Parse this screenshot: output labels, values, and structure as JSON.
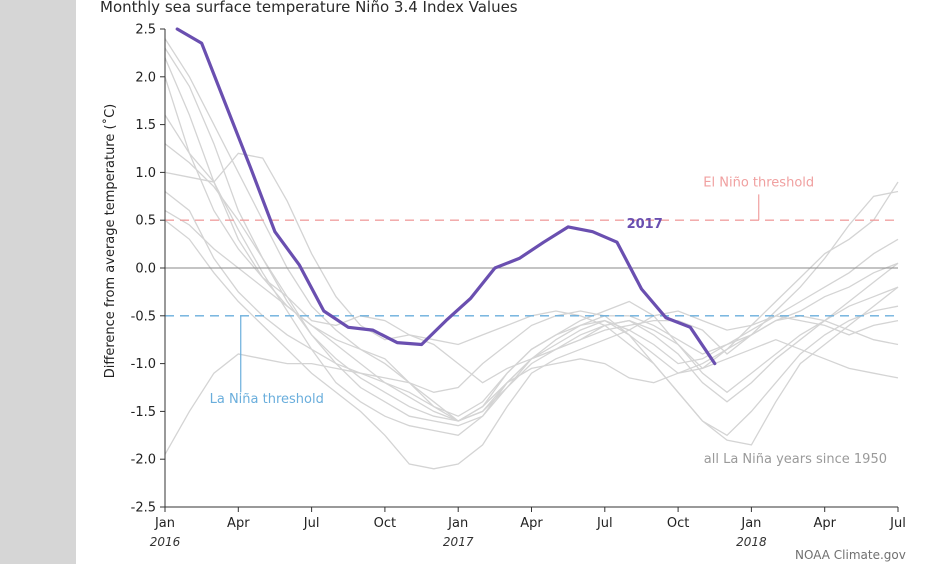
{
  "page": {
    "title": "Monthly sea surface temperature Niño 3.4 Index Values",
    "credit": "NOAA Climate.gov"
  },
  "colors": {
    "highlight": "#6a4fb0",
    "background_lines": "#d4d4d4",
    "el_nino": "#f0a0a0",
    "la_nina": "#6aaedc",
    "zero_line": "#8a8a8a"
  },
  "chart_data": {
    "type": "line",
    "title": "Monthly sea surface temperature Niño 3.4 Index Values",
    "ylabel": "Difference from average temperature (˚C)",
    "xlabel": "",
    "ylim": [
      -2.5,
      2.5
    ],
    "xlim": [
      0,
      30
    ],
    "x_ticks": [
      {
        "x": 0,
        "label": "Jan",
        "year": "2016"
      },
      {
        "x": 3,
        "label": "Apr",
        "year": ""
      },
      {
        "x": 6,
        "label": "Jul",
        "year": ""
      },
      {
        "x": 9,
        "label": "Oct",
        "year": ""
      },
      {
        "x": 12,
        "label": "Jan",
        "year": "2017"
      },
      {
        "x": 15,
        "label": "Apr",
        "year": ""
      },
      {
        "x": 18,
        "label": "Jul",
        "year": ""
      },
      {
        "x": 21,
        "label": "Oct",
        "year": ""
      },
      {
        "x": 24,
        "label": "Jan",
        "year": "2018"
      },
      {
        "x": 27,
        "label": "Apr",
        "year": ""
      },
      {
        "x": 30,
        "label": "Jul",
        "year": ""
      }
    ],
    "y_ticks": [
      {
        "v": 2.5,
        "label": "2.5"
      },
      {
        "v": 2.0,
        "label": "2.0"
      },
      {
        "v": 1.5,
        "label": "1.5"
      },
      {
        "v": 1.0,
        "label": "1.0"
      },
      {
        "v": 0.5,
        "label": "0.5"
      },
      {
        "v": 0.0,
        "label": "0.0"
      },
      {
        "v": -0.5,
        "label": "-0.5"
      },
      {
        "v": -1.0,
        "label": "-1.0"
      },
      {
        "v": -1.5,
        "label": "-1.5"
      },
      {
        "v": -2.0,
        "label": "-2.0"
      },
      {
        "v": -2.5,
        "label": "-2.5"
      }
    ],
    "thresholds": [
      {
        "name": "El Niño threshold",
        "value": 0.5
      },
      {
        "name": "La Niña threshold",
        "value": -0.5
      }
    ],
    "highlight_series": {
      "name": "2017",
      "x_start": 0.5,
      "values": [
        2.5,
        2.35,
        1.7,
        1.05,
        0.38,
        0.03,
        -0.45,
        -0.62,
        -0.65,
        -0.78,
        -0.8,
        -0.55,
        -0.32,
        0.0,
        0.1,
        0.27,
        0.43,
        0.38,
        0.27,
        -0.22,
        -0.52,
        -0.62,
        -1.0
      ]
    },
    "background_label": "all La Niña years since 1950",
    "background_series": [
      {
        "values": [
          2.4,
          2.0,
          1.5,
          1.0,
          0.5,
          0.0,
          -0.4,
          -0.65,
          -0.85,
          -1.0,
          -1.2,
          -1.4,
          -1.6,
          -1.5,
          -1.2,
          -0.95,
          -0.8,
          -0.65,
          -0.55,
          -0.7,
          -0.9,
          -1.1,
          -1.05,
          -0.85,
          -0.7,
          -0.55,
          -0.45,
          -0.3,
          -0.2,
          -0.05,
          0.05
        ]
      },
      {
        "values": [
          2.3,
          1.9,
          1.3,
          0.6,
          0.1,
          -0.35,
          -0.7,
          -1.0,
          -1.25,
          -1.4,
          -1.55,
          -1.6,
          -1.65,
          -1.55,
          -1.25,
          -0.95,
          -0.75,
          -0.6,
          -0.55,
          -0.65,
          -0.8,
          -1.0,
          -0.95,
          -0.8,
          -0.65,
          -0.5,
          -0.35,
          -0.2,
          -0.05,
          0.15,
          0.3
        ]
      },
      {
        "values": [
          2.2,
          1.6,
          0.9,
          0.3,
          -0.1,
          -0.4,
          -0.6,
          -0.75,
          -0.85,
          -0.95,
          -1.2,
          -1.45,
          -1.6,
          -1.5,
          -1.25,
          -1.0,
          -0.85,
          -0.75,
          -0.6,
          -0.55,
          -0.7,
          -0.9,
          -1.2,
          -1.4,
          -1.2,
          -0.95,
          -0.75,
          -0.55,
          -0.35,
          -0.15,
          0.05
        ]
      },
      {
        "values": [
          1.6,
          1.2,
          0.9,
          0.4,
          -0.05,
          -0.45,
          -0.85,
          -1.2,
          -1.4,
          -1.55,
          -1.65,
          -1.7,
          -1.75,
          -1.55,
          -1.2,
          -0.95,
          -0.85,
          -0.7,
          -0.6,
          -0.55,
          -0.65,
          -0.8,
          -1.1,
          -1.3,
          -1.1,
          -0.9,
          -0.7,
          -0.55,
          -0.4,
          -0.3,
          -0.2
        ]
      },
      {
        "values": [
          0.8,
          0.6,
          0.1,
          -0.25,
          -0.5,
          -0.7,
          -0.85,
          -1.0,
          -1.1,
          -1.2,
          -1.3,
          -1.45,
          -1.55,
          -1.4,
          -1.1,
          -0.85,
          -0.7,
          -0.6,
          -0.5,
          -0.5,
          -0.6,
          -0.75,
          -0.9,
          -0.8,
          -0.7,
          -0.55,
          -0.5,
          -0.55,
          -0.65,
          -0.75,
          -0.8
        ]
      },
      {
        "values": [
          0.5,
          0.3,
          -0.05,
          -0.35,
          -0.6,
          -0.85,
          -1.1,
          -1.3,
          -1.5,
          -1.75,
          -2.05,
          -2.1,
          -2.05,
          -1.85,
          -1.45,
          -1.1,
          -0.95,
          -0.85,
          -0.75,
          -0.65,
          -0.5,
          -0.45,
          -0.55,
          -0.65,
          -0.6,
          -0.5,
          -0.55,
          -0.6,
          -0.7,
          -0.6,
          -0.55
        ]
      },
      {
        "values": [
          2.0,
          1.2,
          0.6,
          0.2,
          -0.1,
          -0.3,
          -0.55,
          -0.6,
          -0.5,
          -0.55,
          -0.7,
          -0.75,
          -0.8,
          -0.7,
          -0.6,
          -0.5,
          -0.45,
          -0.5,
          -0.6,
          -0.8,
          -1.0,
          -1.3,
          -1.6,
          -1.75,
          -1.5,
          -1.2,
          -0.9,
          -0.7,
          -0.55,
          -0.45,
          -0.4
        ]
      },
      {
        "values": [
          -1.95,
          -1.5,
          -1.1,
          -0.9,
          -0.95,
          -1.0,
          -1.0,
          -1.05,
          -1.1,
          -1.15,
          -1.2,
          -1.3,
          -1.25,
          -1.0,
          -0.8,
          -0.6,
          -0.5,
          -0.45,
          -0.5,
          -0.7,
          -1.0,
          -1.3,
          -1.6,
          -1.8,
          -1.85,
          -1.4,
          -1.0,
          -0.8,
          -0.6,
          -0.4,
          -0.2
        ]
      },
      {
        "values": [
          1.0,
          0.95,
          0.9,
          1.2,
          1.15,
          0.7,
          0.15,
          -0.3,
          -0.6,
          -0.75,
          -0.7,
          -0.8,
          -1.0,
          -1.2,
          -1.05,
          -0.95,
          -0.85,
          -0.75,
          -0.65,
          -0.6,
          -0.55,
          -0.55,
          -0.65,
          -0.9,
          -0.7,
          -0.45,
          -0.2,
          0.1,
          0.45,
          0.75,
          0.8
        ]
      },
      {
        "values": [
          0.6,
          0.45,
          0.2,
          0.0,
          -0.2,
          -0.4,
          -0.6,
          -0.8,
          -1.0,
          -1.2,
          -1.35,
          -1.5,
          -1.6,
          -1.45,
          -1.2,
          -1.05,
          -1.0,
          -0.95,
          -1.0,
          -1.15,
          -1.2,
          -1.1,
          -1.0,
          -0.85,
          -0.6,
          -0.35,
          -0.1,
          0.15,
          0.3,
          0.5,
          0.9
        ]
      },
      {
        "values": [
          1.3,
          1.1,
          0.85,
          0.5,
          0.1,
          -0.3,
          -0.7,
          -0.95,
          -1.15,
          -1.3,
          -1.45,
          -1.55,
          -1.6,
          -1.45,
          -1.1,
          -0.85,
          -0.7,
          -0.55,
          -0.45,
          -0.35,
          -0.5,
          -0.8,
          -1.05,
          -0.95,
          -0.85,
          -0.75,
          -0.85,
          -0.95,
          -1.05,
          -1.1,
          -1.15
        ]
      }
    ]
  }
}
